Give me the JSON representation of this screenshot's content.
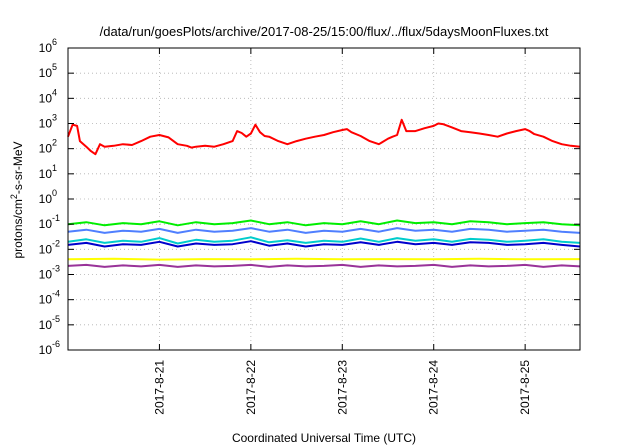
{
  "chart_data": {
    "type": "line",
    "title": "/data/run/goesPlots/archive/2017-08-25/15:00/flux/../flux/5daysMoonFluxes.txt",
    "xlabel": "Coordinated Universal Time (UTC)",
    "ylabel_parts": [
      "protons/cm",
      "2",
      "-s-sr-MeV"
    ],
    "y_scale": "log",
    "ylim": [
      1e-06,
      1000000
    ],
    "y_ticks": [
      {
        "value": 1e-06,
        "base": "10",
        "exp": "-6"
      },
      {
        "value": 1e-05,
        "base": "10",
        "exp": "-5"
      },
      {
        "value": 0.0001,
        "base": "10",
        "exp": "-4"
      },
      {
        "value": 0.001,
        "base": "10",
        "exp": "-3"
      },
      {
        "value": 0.01,
        "base": "10",
        "exp": "-2"
      },
      {
        "value": 0.1,
        "base": "10",
        "exp": "-1"
      },
      {
        "value": 1,
        "base": "10",
        "exp": "0"
      },
      {
        "value": 10,
        "base": "10",
        "exp": "1"
      },
      {
        "value": 100,
        "base": "10",
        "exp": "2"
      },
      {
        "value": 1000,
        "base": "10",
        "exp": "3"
      },
      {
        "value": 10000,
        "base": "10",
        "exp": "4"
      },
      {
        "value": 100000,
        "base": "10",
        "exp": "5"
      },
      {
        "value": 1000000,
        "base": "10",
        "exp": "6"
      }
    ],
    "x_range_days": [
      "2017-08-20",
      "2017-08-25"
    ],
    "xlim_day": [
      0,
      5.6
    ],
    "x_ticks": [
      {
        "day": 1,
        "label": "2017-8-21"
      },
      {
        "day": 2,
        "label": "2017-8-22"
      },
      {
        "day": 3,
        "label": "2017-8-23"
      },
      {
        "day": 4,
        "label": "2017-8-24"
      },
      {
        "day": 5,
        "label": "2017-8-25"
      }
    ],
    "grid": true,
    "series": [
      {
        "color": "#ff0000",
        "points": [
          [
            0,
            300
          ],
          [
            0.05,
            900
          ],
          [
            0.1,
            800
          ],
          [
            0.13,
            200
          ],
          [
            0.2,
            120
          ],
          [
            0.25,
            80
          ],
          [
            0.3,
            60
          ],
          [
            0.35,
            150
          ],
          [
            0.4,
            120
          ],
          [
            0.5,
            130
          ],
          [
            0.6,
            150
          ],
          [
            0.7,
            140
          ],
          [
            0.8,
            200
          ],
          [
            0.9,
            300
          ],
          [
            1.0,
            350
          ],
          [
            1.1,
            280
          ],
          [
            1.2,
            150
          ],
          [
            1.3,
            130
          ],
          [
            1.35,
            110
          ],
          [
            1.4,
            120
          ],
          [
            1.5,
            130
          ],
          [
            1.6,
            120
          ],
          [
            1.7,
            150
          ],
          [
            1.8,
            200
          ],
          [
            1.85,
            500
          ],
          [
            1.9,
            420
          ],
          [
            1.95,
            300
          ],
          [
            2.0,
            400
          ],
          [
            2.05,
            900
          ],
          [
            2.1,
            450
          ],
          [
            2.15,
            320
          ],
          [
            2.2,
            300
          ],
          [
            2.3,
            200
          ],
          [
            2.4,
            150
          ],
          [
            2.5,
            200
          ],
          [
            2.6,
            250
          ],
          [
            2.7,
            300
          ],
          [
            2.8,
            350
          ],
          [
            2.9,
            450
          ],
          [
            3.0,
            550
          ],
          [
            3.05,
            600
          ],
          [
            3.1,
            450
          ],
          [
            3.2,
            320
          ],
          [
            3.3,
            200
          ],
          [
            3.4,
            150
          ],
          [
            3.5,
            250
          ],
          [
            3.55,
            300
          ],
          [
            3.6,
            350
          ],
          [
            3.65,
            1400
          ],
          [
            3.7,
            500
          ],
          [
            3.8,
            500
          ],
          [
            3.9,
            650
          ],
          [
            4.0,
            800
          ],
          [
            4.05,
            1000
          ],
          [
            4.1,
            950
          ],
          [
            4.2,
            700
          ],
          [
            4.3,
            500
          ],
          [
            4.4,
            450
          ],
          [
            4.5,
            400
          ],
          [
            4.6,
            350
          ],
          [
            4.7,
            300
          ],
          [
            4.8,
            400
          ],
          [
            4.9,
            500
          ],
          [
            5.0,
            600
          ],
          [
            5.05,
            500
          ],
          [
            5.1,
            380
          ],
          [
            5.2,
            300
          ],
          [
            5.3,
            200
          ],
          [
            5.4,
            150
          ],
          [
            5.5,
            130
          ],
          [
            5.6,
            120
          ]
        ]
      },
      {
        "color": "#00ee00",
        "points": [
          [
            0,
            0.1
          ],
          [
            0.2,
            0.12
          ],
          [
            0.4,
            0.09
          ],
          [
            0.6,
            0.11
          ],
          [
            0.8,
            0.1
          ],
          [
            1.0,
            0.13
          ],
          [
            1.2,
            0.09
          ],
          [
            1.4,
            0.12
          ],
          [
            1.6,
            0.1
          ],
          [
            1.8,
            0.11
          ],
          [
            2.0,
            0.14
          ],
          [
            2.2,
            0.1
          ],
          [
            2.4,
            0.12
          ],
          [
            2.6,
            0.09
          ],
          [
            2.8,
            0.11
          ],
          [
            3.0,
            0.1
          ],
          [
            3.2,
            0.13
          ],
          [
            3.4,
            0.1
          ],
          [
            3.6,
            0.14
          ],
          [
            3.8,
            0.11
          ],
          [
            4.0,
            0.12
          ],
          [
            4.2,
            0.1
          ],
          [
            4.4,
            0.13
          ],
          [
            4.6,
            0.12
          ],
          [
            4.8,
            0.1
          ],
          [
            5.0,
            0.11
          ],
          [
            5.2,
            0.12
          ],
          [
            5.4,
            0.1
          ],
          [
            5.6,
            0.09
          ]
        ]
      },
      {
        "color": "#00cccc",
        "points": [
          [
            0,
            0.02
          ],
          [
            0.2,
            0.025
          ],
          [
            0.4,
            0.018
          ],
          [
            0.6,
            0.022
          ],
          [
            0.8,
            0.02
          ],
          [
            1.0,
            0.028
          ],
          [
            1.2,
            0.017
          ],
          [
            1.4,
            0.024
          ],
          [
            1.6,
            0.02
          ],
          [
            1.8,
            0.022
          ],
          [
            2.0,
            0.03
          ],
          [
            2.2,
            0.019
          ],
          [
            2.4,
            0.023
          ],
          [
            2.6,
            0.018
          ],
          [
            2.8,
            0.022
          ],
          [
            3.0,
            0.02
          ],
          [
            3.2,
            0.027
          ],
          [
            3.4,
            0.02
          ],
          [
            3.6,
            0.028
          ],
          [
            3.8,
            0.022
          ],
          [
            4.0,
            0.025
          ],
          [
            4.2,
            0.02
          ],
          [
            4.4,
            0.026
          ],
          [
            4.6,
            0.024
          ],
          [
            4.8,
            0.02
          ],
          [
            5.0,
            0.022
          ],
          [
            5.2,
            0.025
          ],
          [
            5.4,
            0.02
          ],
          [
            5.6,
            0.018
          ]
        ]
      },
      {
        "color": "#4f7fff",
        "points": [
          [
            0,
            0.05
          ],
          [
            0.2,
            0.06
          ],
          [
            0.4,
            0.045
          ],
          [
            0.6,
            0.055
          ],
          [
            0.8,
            0.05
          ],
          [
            1.0,
            0.065
          ],
          [
            1.2,
            0.045
          ],
          [
            1.4,
            0.06
          ],
          [
            1.6,
            0.05
          ],
          [
            1.8,
            0.055
          ],
          [
            2.0,
            0.07
          ],
          [
            2.2,
            0.05
          ],
          [
            2.4,
            0.06
          ],
          [
            2.6,
            0.045
          ],
          [
            2.8,
            0.055
          ],
          [
            3.0,
            0.05
          ],
          [
            3.2,
            0.065
          ],
          [
            3.4,
            0.05
          ],
          [
            3.6,
            0.07
          ],
          [
            3.8,
            0.055
          ],
          [
            4.0,
            0.06
          ],
          [
            4.2,
            0.05
          ],
          [
            4.4,
            0.065
          ],
          [
            4.6,
            0.06
          ],
          [
            4.8,
            0.05
          ],
          [
            5.0,
            0.055
          ],
          [
            5.2,
            0.06
          ],
          [
            5.4,
            0.05
          ],
          [
            5.6,
            0.045
          ]
        ]
      },
      {
        "color": "#0000cc",
        "points": [
          [
            0,
            0.015
          ],
          [
            0.2,
            0.018
          ],
          [
            0.4,
            0.013
          ],
          [
            0.6,
            0.016
          ],
          [
            0.8,
            0.015
          ],
          [
            1.0,
            0.02
          ],
          [
            1.2,
            0.013
          ],
          [
            1.4,
            0.017
          ],
          [
            1.6,
            0.015
          ],
          [
            1.8,
            0.016
          ],
          [
            2.0,
            0.021
          ],
          [
            2.2,
            0.014
          ],
          [
            2.4,
            0.017
          ],
          [
            2.6,
            0.013
          ],
          [
            2.8,
            0.016
          ],
          [
            3.0,
            0.015
          ],
          [
            3.2,
            0.019
          ],
          [
            3.4,
            0.015
          ],
          [
            3.6,
            0.02
          ],
          [
            3.8,
            0.016
          ],
          [
            4.0,
            0.018
          ],
          [
            4.2,
            0.015
          ],
          [
            4.4,
            0.019
          ],
          [
            4.6,
            0.018
          ],
          [
            4.8,
            0.015
          ],
          [
            5.0,
            0.016
          ],
          [
            5.2,
            0.018
          ],
          [
            5.4,
            0.015
          ],
          [
            5.6,
            0.013
          ]
        ]
      },
      {
        "color": "#ffff00",
        "points": [
          [
            0,
            0.004
          ],
          [
            0.5,
            0.0042
          ],
          [
            1.0,
            0.0039
          ],
          [
            1.5,
            0.0041
          ],
          [
            2.0,
            0.004
          ],
          [
            2.5,
            0.0042
          ],
          [
            3.0,
            0.004
          ],
          [
            3.5,
            0.0041
          ],
          [
            4.0,
            0.004
          ],
          [
            4.5,
            0.0042
          ],
          [
            5.0,
            0.004
          ],
          [
            5.6,
            0.0041
          ]
        ]
      },
      {
        "color": "#993399",
        "points": [
          [
            0,
            0.0022
          ],
          [
            0.2,
            0.0024
          ],
          [
            0.4,
            0.002
          ],
          [
            0.6,
            0.0023
          ],
          [
            0.8,
            0.0021
          ],
          [
            1.0,
            0.0024
          ],
          [
            1.2,
            0.002
          ],
          [
            1.4,
            0.0023
          ],
          [
            1.6,
            0.0021
          ],
          [
            1.8,
            0.0022
          ],
          [
            2.0,
            0.0024
          ],
          [
            2.2,
            0.002
          ],
          [
            2.4,
            0.0023
          ],
          [
            2.6,
            0.0021
          ],
          [
            2.8,
            0.0022
          ],
          [
            3.0,
            0.0024
          ],
          [
            3.2,
            0.002
          ],
          [
            3.4,
            0.0023
          ],
          [
            3.6,
            0.0021
          ],
          [
            3.8,
            0.0022
          ],
          [
            4.0,
            0.0024
          ],
          [
            4.2,
            0.002
          ],
          [
            4.4,
            0.0023
          ],
          [
            4.6,
            0.0021
          ],
          [
            4.8,
            0.0022
          ],
          [
            5.0,
            0.0024
          ],
          [
            5.2,
            0.002
          ],
          [
            5.4,
            0.0023
          ],
          [
            5.6,
            0.0021
          ]
        ]
      }
    ]
  }
}
